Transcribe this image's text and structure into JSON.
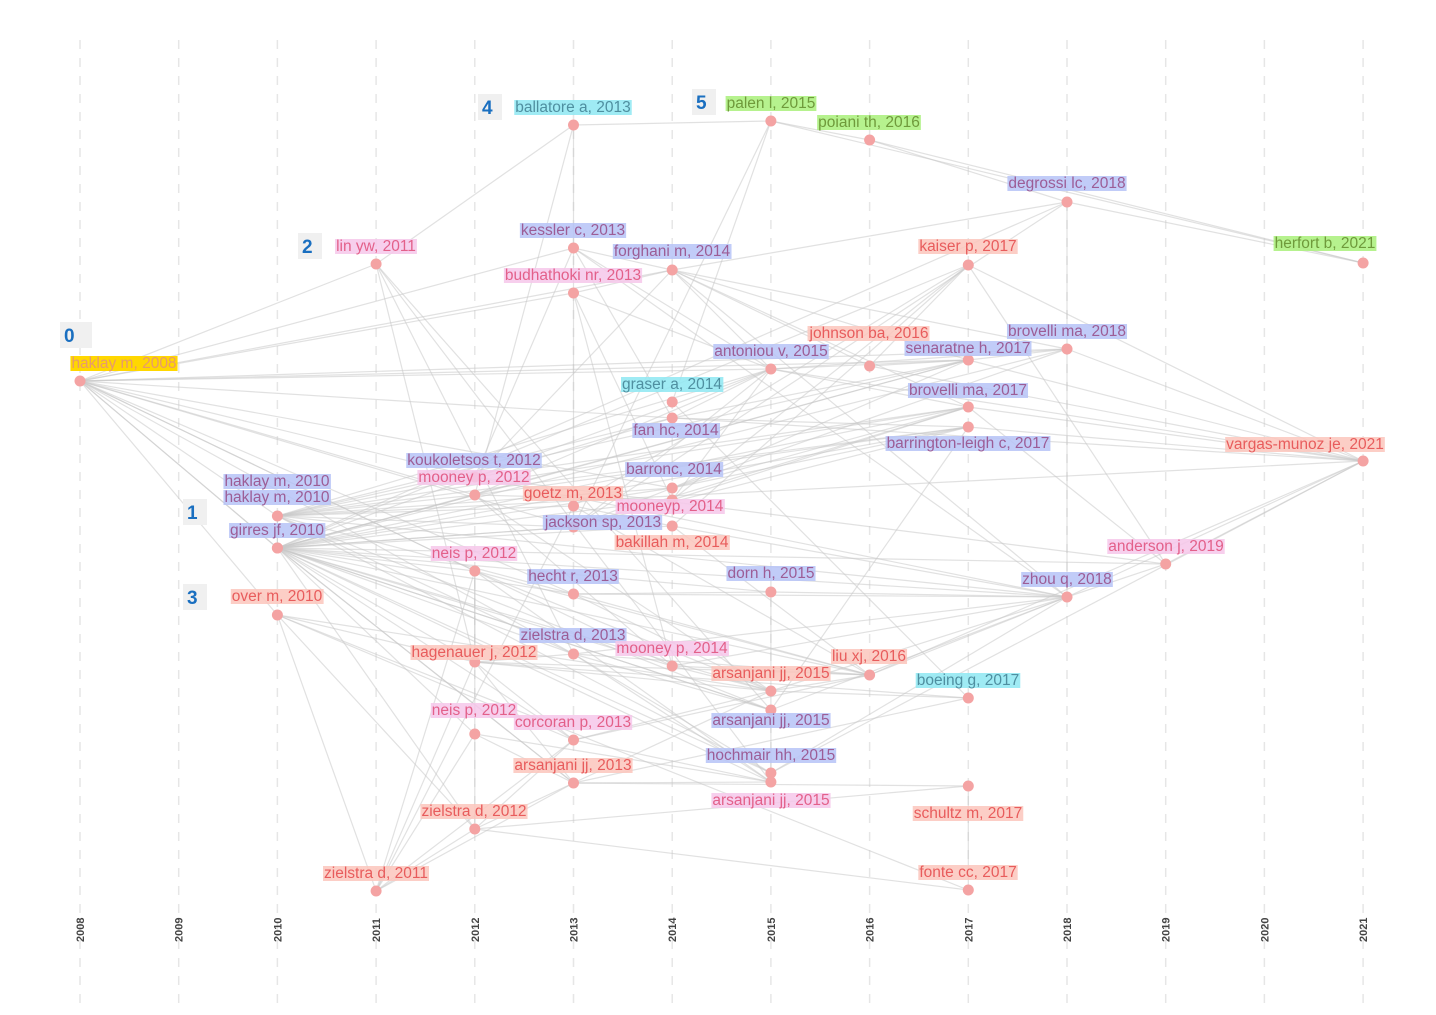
{
  "years": [
    "2008",
    "2009",
    "2010",
    "2011",
    "2012",
    "2013",
    "2014",
    "2015",
    "2016",
    "2017",
    "2018",
    "2019",
    "2020",
    "2021"
  ],
  "cluster_colors": {
    "0": "#ffd700",
    "1": "#b6c3f7",
    "2": "#f6c7ea",
    "3": "#fcc6bc",
    "4": "#8ee8f2",
    "5": "#a9f07a"
  },
  "text_colors": {
    "0": "#e89a6c",
    "1": "#9c5d96",
    "2": "#e3608a",
    "3": "#e85c5c",
    "4": "#4f8fa0",
    "5": "#6f9a3b"
  },
  "cluster_labels": [
    {
      "id": "0",
      "label": "0"
    },
    {
      "id": "1",
      "label": "1"
    },
    {
      "id": "2",
      "label": "2"
    },
    {
      "id": "3",
      "label": "3"
    },
    {
      "id": "4",
      "label": "4"
    },
    {
      "id": "5",
      "label": "5"
    }
  ],
  "nodes": [
    {
      "id": 0,
      "label": "haklay m, 2008",
      "year": 2008,
      "cluster": "0"
    },
    {
      "id": 1,
      "label": "haklay m, 2010",
      "year": 2010,
      "cluster": "1"
    },
    {
      "id": 2,
      "label": "haklay m, 2010",
      "year": 2010,
      "cluster": "1"
    },
    {
      "id": 3,
      "label": "girres jf, 2010",
      "year": 2010,
      "cluster": "1"
    },
    {
      "id": 4,
      "label": "over m, 2010",
      "year": 2010,
      "cluster": "3"
    },
    {
      "id": 5,
      "label": "lin yw, 2011",
      "year": 2011,
      "cluster": "2"
    },
    {
      "id": 6,
      "label": "zielstra d, 2011",
      "year": 2011,
      "cluster": "3"
    },
    {
      "id": 7,
      "label": "koukoletsos t, 2012",
      "year": 2012,
      "cluster": "1"
    },
    {
      "id": 8,
      "label": "mooney p, 2012",
      "year": 2012,
      "cluster": "2"
    },
    {
      "id": 9,
      "label": "neis p, 2012",
      "year": 2012,
      "cluster": "2"
    },
    {
      "id": 10,
      "label": "hagenauer j, 2012",
      "year": 2012,
      "cluster": "3"
    },
    {
      "id": 11,
      "label": "neis p, 2012",
      "year": 2012,
      "cluster": "2"
    },
    {
      "id": 12,
      "label": "zielstra d, 2012",
      "year": 2012,
      "cluster": "3"
    },
    {
      "id": 13,
      "label": "ballatore a, 2013",
      "year": 2013,
      "cluster": "4"
    },
    {
      "id": 14,
      "label": "kessler c, 2013",
      "year": 2013,
      "cluster": "1"
    },
    {
      "id": 15,
      "label": "budhathoki nr, 2013",
      "year": 2013,
      "cluster": "2"
    },
    {
      "id": 16,
      "label": "goetz m, 2013",
      "year": 2013,
      "cluster": "3"
    },
    {
      "id": 17,
      "label": "jackson sp, 2013",
      "year": 2013,
      "cluster": "1"
    },
    {
      "id": 18,
      "label": "hecht r, 2013",
      "year": 2013,
      "cluster": "1"
    },
    {
      "id": 19,
      "label": "zielstra d, 2013",
      "year": 2013,
      "cluster": "1"
    },
    {
      "id": 20,
      "label": "corcoran p, 2013",
      "year": 2013,
      "cluster": "2"
    },
    {
      "id": 21,
      "label": "arsanjani jj, 2013",
      "year": 2013,
      "cluster": "3"
    },
    {
      "id": 22,
      "label": "forghani m, 2014",
      "year": 2014,
      "cluster": "1"
    },
    {
      "id": 23,
      "label": "graser a, 2014",
      "year": 2014,
      "cluster": "4"
    },
    {
      "id": 24,
      "label": "fan hc, 2014",
      "year": 2014,
      "cluster": "1"
    },
    {
      "id": 25,
      "label": "barronc, 2014",
      "year": 2014,
      "cluster": "1"
    },
    {
      "id": 26,
      "label": "mooneyp, 2014",
      "year": 2014,
      "cluster": "2"
    },
    {
      "id": 27,
      "label": "bakillah m, 2014",
      "year": 2014,
      "cluster": "3"
    },
    {
      "id": 28,
      "label": "mooney p, 2014",
      "year": 2014,
      "cluster": "2"
    },
    {
      "id": 29,
      "label": "palen l, 2015",
      "year": 2015,
      "cluster": "5"
    },
    {
      "id": 30,
      "label": "antoniou v, 2015",
      "year": 2015,
      "cluster": "1"
    },
    {
      "id": 31,
      "label": "dorn h, 2015",
      "year": 2015,
      "cluster": "1"
    },
    {
      "id": 32,
      "label": "arsanjani jj, 2015",
      "year": 2015,
      "cluster": "3"
    },
    {
      "id": 33,
      "label": "arsanjani jj, 2015",
      "year": 2015,
      "cluster": "1"
    },
    {
      "id": 34,
      "label": "hochmair hh, 2015",
      "year": 2015,
      "cluster": "1"
    },
    {
      "id": 35,
      "label": "arsanjani jj, 2015",
      "year": 2015,
      "cluster": "2"
    },
    {
      "id": 36,
      "label": "poiani th, 2016",
      "year": 2016,
      "cluster": "5"
    },
    {
      "id": 37,
      "label": "johnson ba, 2016",
      "year": 2016,
      "cluster": "3"
    },
    {
      "id": 38,
      "label": "liu xj, 2016",
      "year": 2016,
      "cluster": "3"
    },
    {
      "id": 39,
      "label": "kaiser p, 2017",
      "year": 2017,
      "cluster": "3"
    },
    {
      "id": 40,
      "label": "senaratne h, 2017",
      "year": 2017,
      "cluster": "1"
    },
    {
      "id": 41,
      "label": "brovelli ma, 2017",
      "year": 2017,
      "cluster": "1"
    },
    {
      "id": 42,
      "label": "barrington-leigh c, 2017",
      "year": 2017,
      "cluster": "1"
    },
    {
      "id": 43,
      "label": "boeing g, 2017",
      "year": 2017,
      "cluster": "4"
    },
    {
      "id": 44,
      "label": "schultz m, 2017",
      "year": 2017,
      "cluster": "3"
    },
    {
      "id": 45,
      "label": "fonte cc, 2017",
      "year": 2017,
      "cluster": "3"
    },
    {
      "id": 46,
      "label": "degrossi lc, 2018",
      "year": 2018,
      "cluster": "1"
    },
    {
      "id": 47,
      "label": "brovelli ma, 2018",
      "year": 2018,
      "cluster": "1"
    },
    {
      "id": 48,
      "label": "zhou q, 2018",
      "year": 2018,
      "cluster": "1"
    },
    {
      "id": 49,
      "label": "anderson j, 2019",
      "year": 2019,
      "cluster": "2"
    },
    {
      "id": 50,
      "label": "herfort b, 2021",
      "year": 2021,
      "cluster": "5"
    },
    {
      "id": 51,
      "label": "vargas-munoz je, 2021",
      "year": 2021,
      "cluster": "3"
    }
  ],
  "edges": [
    [
      0,
      1
    ],
    [
      0,
      2
    ],
    [
      0,
      3
    ],
    [
      0,
      4
    ],
    [
      0,
      5
    ],
    [
      0,
      7
    ],
    [
      0,
      8
    ],
    [
      0,
      14
    ],
    [
      0,
      15
    ],
    [
      0,
      17
    ],
    [
      0,
      18
    ],
    [
      0,
      22
    ],
    [
      0,
      25
    ],
    [
      0,
      30
    ],
    [
      0,
      40
    ],
    [
      0,
      51
    ],
    [
      0,
      47
    ],
    [
      0,
      9
    ],
    [
      0,
      19
    ],
    [
      0,
      28
    ],
    [
      1,
      2
    ],
    [
      1,
      3
    ],
    [
      1,
      7
    ],
    [
      1,
      8
    ],
    [
      1,
      16
    ],
    [
      1,
      17
    ],
    [
      1,
      18
    ],
    [
      1,
      19
    ],
    [
      1,
      24
    ],
    [
      1,
      25
    ],
    [
      1,
      30
    ],
    [
      1,
      40
    ],
    [
      1,
      41
    ],
    [
      1,
      42
    ],
    [
      1,
      48
    ],
    [
      1,
      51
    ],
    [
      1,
      33
    ],
    [
      1,
      34
    ],
    [
      2,
      3
    ],
    [
      2,
      8
    ],
    [
      2,
      9
    ],
    [
      2,
      11
    ],
    [
      2,
      12
    ],
    [
      2,
      17
    ],
    [
      2,
      18
    ],
    [
      2,
      20
    ],
    [
      2,
      21
    ],
    [
      2,
      26
    ],
    [
      2,
      27
    ],
    [
      2,
      28
    ],
    [
      2,
      31
    ],
    [
      2,
      32
    ],
    [
      2,
      33
    ],
    [
      2,
      35
    ],
    [
      2,
      38
    ],
    [
      2,
      47
    ],
    [
      2,
      48
    ],
    [
      2,
      46
    ],
    [
      2,
      39
    ],
    [
      2,
      49
    ],
    [
      3,
      7
    ],
    [
      3,
      8
    ],
    [
      3,
      17
    ],
    [
      3,
      19
    ],
    [
      3,
      25
    ],
    [
      3,
      40
    ],
    [
      3,
      41
    ],
    [
      3,
      42
    ],
    [
      3,
      33
    ],
    [
      3,
      34
    ],
    [
      3,
      21
    ],
    [
      3,
      10
    ],
    [
      4,
      6
    ],
    [
      4,
      12
    ],
    [
      4,
      10
    ],
    [
      4,
      20
    ],
    [
      4,
      32
    ],
    [
      4,
      45
    ],
    [
      5,
      13
    ],
    [
      5,
      10
    ],
    [
      5,
      19
    ],
    [
      5,
      33
    ],
    [
      5,
      35
    ],
    [
      6,
      9
    ],
    [
      6,
      11
    ],
    [
      6,
      12
    ],
    [
      6,
      16
    ],
    [
      6,
      21
    ],
    [
      6,
      10
    ],
    [
      6,
      20
    ],
    [
      7,
      14
    ],
    [
      7,
      22
    ],
    [
      7,
      24
    ],
    [
      7,
      30
    ],
    [
      7,
      41
    ],
    [
      7,
      48
    ],
    [
      7,
      49
    ],
    [
      8,
      13
    ],
    [
      8,
      26
    ],
    [
      8,
      28
    ],
    [
      8,
      30
    ],
    [
      8,
      32
    ],
    [
      8,
      40
    ],
    [
      8,
      42
    ],
    [
      9,
      10
    ],
    [
      9,
      11
    ],
    [
      9,
      32
    ],
    [
      9,
      35
    ],
    [
      9,
      38
    ],
    [
      10,
      19
    ],
    [
      10,
      20
    ],
    [
      10,
      32
    ],
    [
      10,
      38
    ],
    [
      10,
      43
    ],
    [
      10,
      21
    ],
    [
      11,
      12
    ],
    [
      11,
      35
    ],
    [
      11,
      21
    ],
    [
      12,
      20
    ],
    [
      12,
      21
    ],
    [
      12,
      44
    ],
    [
      12,
      45
    ],
    [
      13,
      29
    ],
    [
      13,
      17
    ],
    [
      14,
      22
    ],
    [
      14,
      24
    ],
    [
      14,
      30
    ],
    [
      14,
      48
    ],
    [
      15,
      22
    ],
    [
      15,
      26
    ],
    [
      15,
      30
    ],
    [
      15,
      28
    ],
    [
      16,
      27
    ],
    [
      16,
      38
    ],
    [
      16,
      39
    ],
    [
      17,
      25
    ],
    [
      17,
      30
    ],
    [
      17,
      41
    ],
    [
      17,
      42
    ],
    [
      17,
      46
    ],
    [
      18,
      31
    ],
    [
      18,
      32
    ],
    [
      18,
      38
    ],
    [
      18,
      48
    ],
    [
      19,
      33
    ],
    [
      19,
      34
    ],
    [
      19,
      35
    ],
    [
      19,
      38
    ],
    [
      19,
      48
    ],
    [
      20,
      32
    ],
    [
      20,
      35
    ],
    [
      20,
      38
    ],
    [
      21,
      32
    ],
    [
      21,
      35
    ],
    [
      21,
      44
    ],
    [
      21,
      43
    ],
    [
      22,
      30
    ],
    [
      22,
      37
    ],
    [
      22,
      40
    ],
    [
      22,
      41
    ],
    [
      22,
      46
    ],
    [
      22,
      48
    ],
    [
      22,
      47
    ],
    [
      23,
      43
    ],
    [
      23,
      29
    ],
    [
      24,
      30
    ],
    [
      24,
      40
    ],
    [
      24,
      42
    ],
    [
      25,
      40
    ],
    [
      25,
      41
    ],
    [
      25,
      42
    ],
    [
      25,
      47
    ],
    [
      26,
      30
    ],
    [
      26,
      41
    ],
    [
      26,
      39
    ],
    [
      27,
      38
    ],
    [
      27,
      39
    ],
    [
      27,
      48
    ],
    [
      28,
      32
    ],
    [
      28,
      38
    ],
    [
      28,
      48
    ],
    [
      29,
      36
    ],
    [
      29,
      50
    ],
    [
      29,
      17
    ],
    [
      30,
      40
    ],
    [
      30,
      41
    ],
    [
      30,
      47
    ],
    [
      30,
      51
    ],
    [
      31,
      48
    ],
    [
      31,
      33
    ],
    [
      32,
      38
    ],
    [
      32,
      48
    ],
    [
      32,
      43
    ],
    [
      33,
      34
    ],
    [
      33,
      48
    ],
    [
      33,
      42
    ],
    [
      34,
      35
    ],
    [
      34,
      48
    ],
    [
      34,
      51
    ],
    [
      36,
      46
    ],
    [
      36,
      50
    ],
    [
      37,
      39
    ],
    [
      37,
      40
    ],
    [
      37,
      51
    ],
    [
      38,
      48
    ],
    [
      38,
      51
    ],
    [
      39,
      51
    ],
    [
      39,
      49
    ],
    [
      40,
      47
    ],
    [
      40,
      51
    ],
    [
      41,
      51
    ],
    [
      41,
      49
    ],
    [
      42,
      51
    ],
    [
      44,
      45
    ],
    [
      46,
      50
    ],
    [
      46,
      48
    ],
    [
      47,
      51
    ],
    [
      48,
      51
    ],
    [
      48,
      49
    ],
    [
      49,
      51
    ]
  ]
}
